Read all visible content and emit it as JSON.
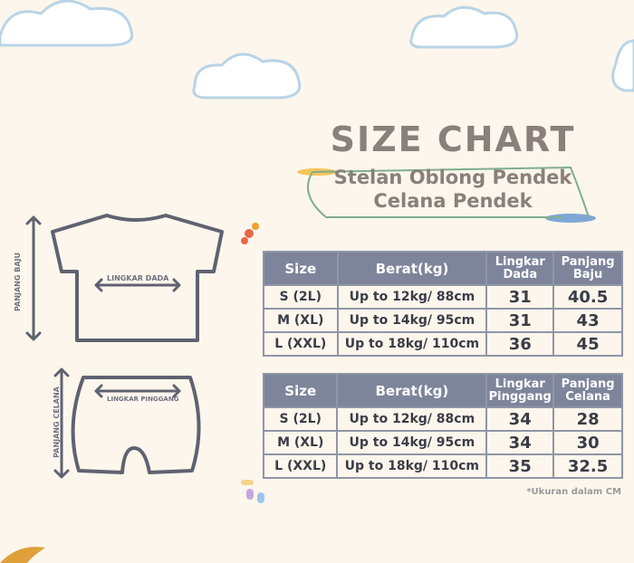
{
  "title": "SIZE CHART",
  "subtitle_line1": "Stelan Oblong Pendek",
  "subtitle_line2": "Celana Pendek",
  "diagram": {
    "shirt_length_label": "PANJANG BAJU",
    "chest_label": "LINGKAR DADA",
    "pants_length_label": "PANJANG CELANA",
    "waist_label": "LINGKAR PINGGANG"
  },
  "shirt_table": {
    "headers": [
      "Size",
      "Berat(kg)",
      "Lingkar Dada",
      "Panjang Baju"
    ],
    "rows": [
      [
        "S (2L)",
        "Up to 12kg/ 88cm",
        "31",
        "40.5"
      ],
      [
        "M (XL)",
        "Up to 14kg/ 95cm",
        "31",
        "43"
      ],
      [
        "L (XXL)",
        "Up to 18kg/ 110cm",
        "36",
        "45"
      ]
    ]
  },
  "pants_table": {
    "headers": [
      "Size",
      "Berat(kg)",
      "Lingkar Pinggang",
      "Panjang Celana"
    ],
    "rows": [
      [
        "S (2L)",
        "Up to 12kg/ 88cm",
        "34",
        "28"
      ],
      [
        "M (XL)",
        "Up to 14kg/ 95cm",
        "34",
        "30"
      ],
      [
        "L (XXL)",
        "Up to 18kg/ 110cm",
        "35",
        "32.5"
      ]
    ]
  },
  "note": "*Ukuran dalam CM",
  "colors": {
    "background": "#fcf6ec",
    "header": "#7e859b",
    "title": "#8a7f7a",
    "outline": "#5f6270"
  }
}
